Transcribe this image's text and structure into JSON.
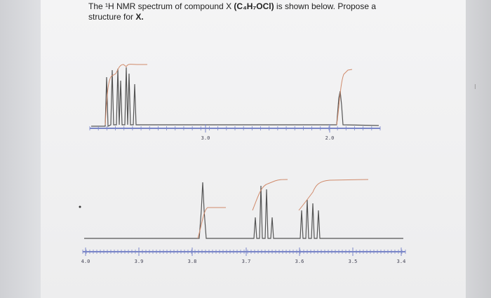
{
  "question": {
    "line1_start": "The ¹H NMR spectrum of compound X",
    "formula": "(C₄H₇OCl)",
    "line1_end": "is shown below. Propose a",
    "line2_start": "structure for",
    "line2_bold": "X."
  },
  "spectra": [
    {
      "ticks": [
        "3.0",
        "2.0"
      ]
    },
    {
      "ticks": [
        "4.0",
        "3.9",
        "3.8",
        "3.7",
        "3.6",
        "3.5",
        "3.4"
      ]
    }
  ]
}
